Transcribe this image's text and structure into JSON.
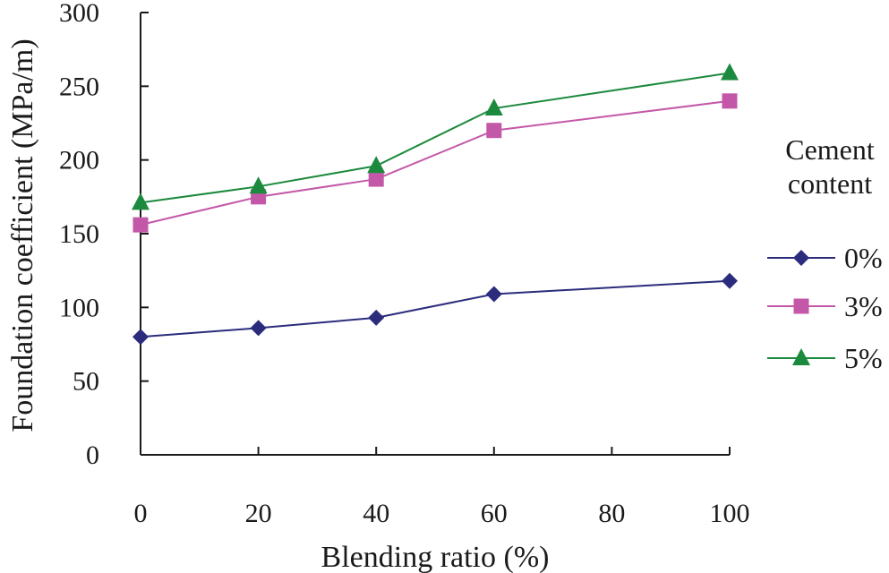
{
  "chart_data": {
    "type": "line",
    "title": "",
    "xlabel": "Blending ratio (%)",
    "ylabel": "Foundation coefficient (MPa/m)",
    "x": [
      0,
      20,
      40,
      60,
      100
    ],
    "xlim": [
      0,
      100
    ],
    "ylim": [
      0,
      300
    ],
    "x_ticks": [
      "0",
      "20",
      "40",
      "60",
      "80",
      "100"
    ],
    "y_ticks": [
      "0",
      "50",
      "100",
      "150",
      "200",
      "250",
      "300"
    ],
    "grid": false,
    "legend": {
      "title_lines": [
        "Cement",
        "content"
      ],
      "placement": "right"
    },
    "series": [
      {
        "name": "0%",
        "color": "#2b2c7c",
        "marker": "diamond",
        "values": [
          80,
          86,
          93,
          109,
          118
        ]
      },
      {
        "name": "3%",
        "color": "#c458a8",
        "marker": "square",
        "values": [
          156,
          175,
          187,
          220,
          240
        ]
      },
      {
        "name": "5%",
        "color": "#1c8a3e",
        "marker": "triangle",
        "values": [
          171,
          182,
          196,
          235,
          259
        ]
      }
    ]
  }
}
